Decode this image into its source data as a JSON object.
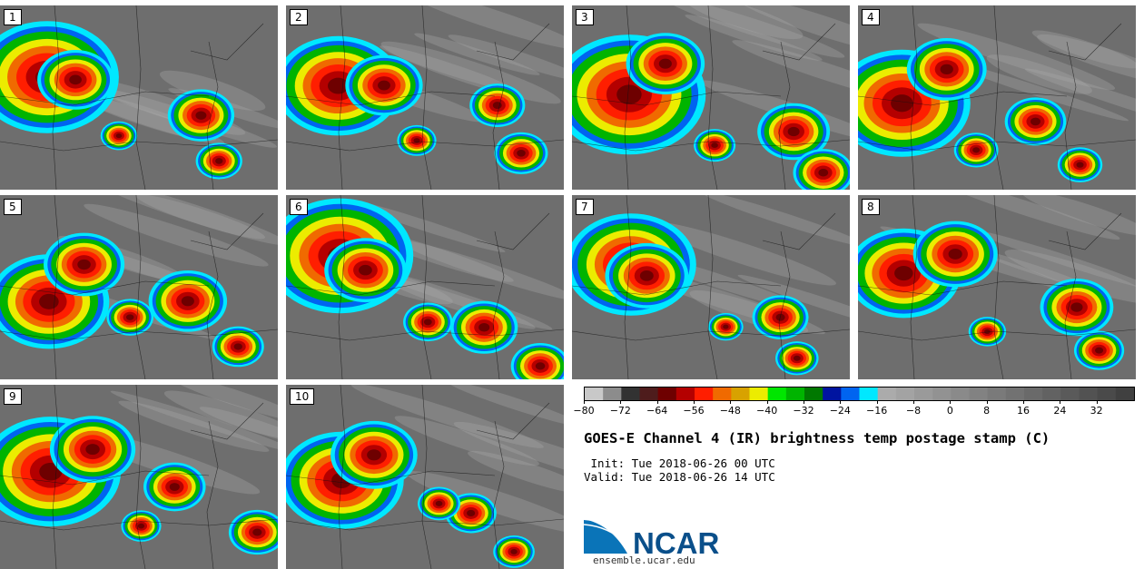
{
  "stamps": [
    {
      "label": "1"
    },
    {
      "label": "2"
    },
    {
      "label": "3"
    },
    {
      "label": "4"
    },
    {
      "label": "5"
    },
    {
      "label": "6"
    },
    {
      "label": "7"
    },
    {
      "label": "8"
    },
    {
      "label": "9"
    },
    {
      "label": "10"
    }
  ],
  "colorbar": {
    "min": -80,
    "max": 40,
    "step": 4,
    "tick_labels": [
      "-80",
      "-72",
      "-64",
      "-56",
      "-48",
      "-40",
      "-32",
      "-24",
      "-16",
      "-8",
      "0",
      "8",
      "16",
      "24",
      "32"
    ],
    "colors": [
      "#c8c8c8",
      "#8c8c8c",
      "#323232",
      "#4e1c1c",
      "#6e0000",
      "#b40000",
      "#ff1e00",
      "#f06a00",
      "#d8a200",
      "#ecec00",
      "#00e600",
      "#00b400",
      "#007800",
      "#0014a0",
      "#0064f0",
      "#00e8ff",
      "#ababab",
      "#a3a3a3",
      "#9a9a9a",
      "#929292",
      "#8a8a8a",
      "#828282",
      "#7a7a7a",
      "#727272",
      "#6a6a6a",
      "#626262",
      "#5a5a5a",
      "#525252",
      "#4a4a4a",
      "#404040"
    ]
  },
  "title": "GOES-E Channel 4 (IR) brightness temp postage stamp (C)",
  "init_line": " Init: Tue 2018-06-26 00 UTC",
  "valid_line": "Valid: Tue 2018-06-26 14 UTC",
  "logo": {
    "text": "NCAR",
    "url": "ensemble.ucar.edu",
    "color": "#0a74b8"
  }
}
